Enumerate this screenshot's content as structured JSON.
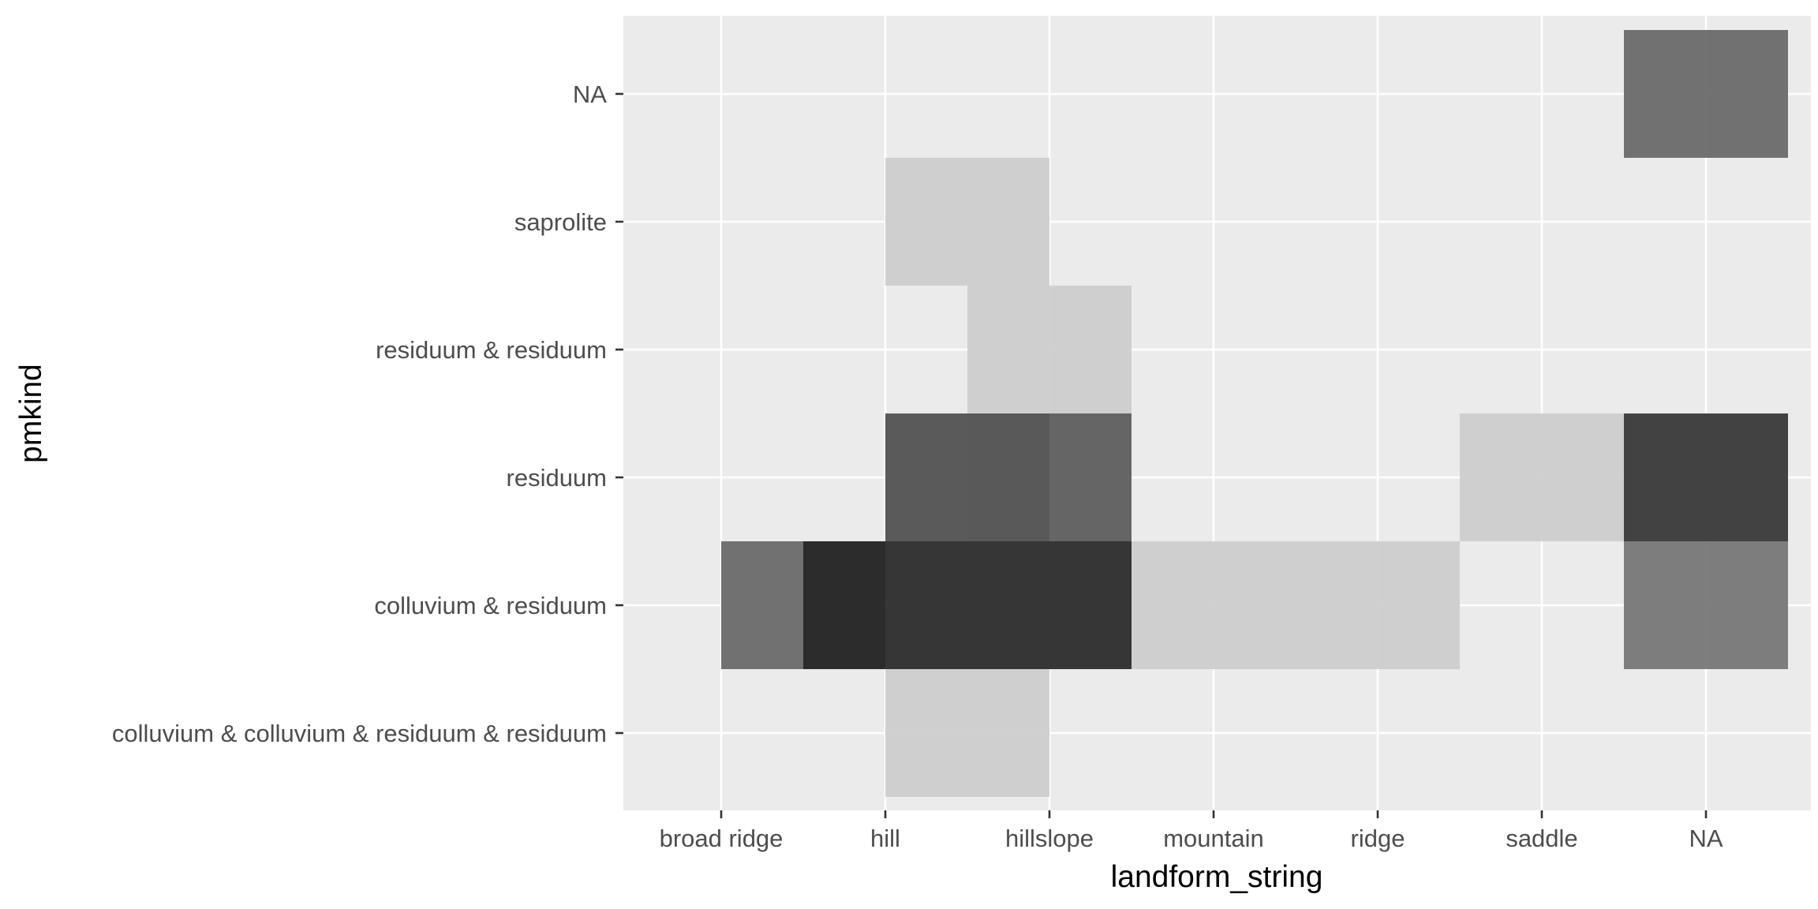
{
  "chart_data": {
    "type": "heatmap",
    "title": "",
    "xlabel": "landform_string",
    "ylabel": "pmkind",
    "x_categories": [
      "broad ridge",
      "hill",
      "hillslope",
      "mountain",
      "ridge",
      "saddle",
      "NA"
    ],
    "y_categories": [
      "colluvium & colluvium & residuum & residuum",
      "colluvium & residuum",
      "residuum",
      "residuum & residuum",
      "saprolite",
      "NA"
    ],
    "fill": "gray shade, darker = higher count",
    "grid": true,
    "legend": "none",
    "tiles": [
      {
        "x": 2.5,
        "y": "colluvium & colluvium & residuum & residuum",
        "width": 1,
        "shade": 0.2
      },
      {
        "x": 1.5,
        "y": "colluvium & residuum",
        "width": 1,
        "shade": 0.6
      },
      {
        "x": 2.5,
        "y": "colluvium & residuum",
        "width": 2,
        "shade": 0.85
      },
      {
        "x": 4.5,
        "y": "colluvium & residuum",
        "width": 2,
        "shade": 0.2
      },
      {
        "x": 7,
        "y": "colluvium & residuum",
        "width": 1,
        "shade": 0.55
      },
      {
        "x": 2.5,
        "y": "residuum",
        "width": 1,
        "shade": 0.7
      },
      {
        "x": 3,
        "y": "residuum",
        "width": 1,
        "shade": 0.65
      },
      {
        "x": 6,
        "y": "residuum",
        "width": 1,
        "shade": 0.2
      },
      {
        "x": 7,
        "y": "residuum",
        "width": 1,
        "shade": 0.8
      },
      {
        "x": 3,
        "y": "residuum & residuum",
        "width": 1,
        "shade": 0.2
      },
      {
        "x": 2.5,
        "y": "saprolite",
        "width": 1,
        "shade": 0.2
      },
      {
        "x": 7,
        "y": "NA",
        "width": 1,
        "shade": 0.6
      }
    ]
  },
  "colors": {
    "panel_background": "#ebebeb",
    "grid_major": "#ffffff",
    "grid_minor": "#f5f5f5",
    "tick_mark": "#333333",
    "tick_label": "#4d4d4d",
    "axis_title": "#000000"
  }
}
